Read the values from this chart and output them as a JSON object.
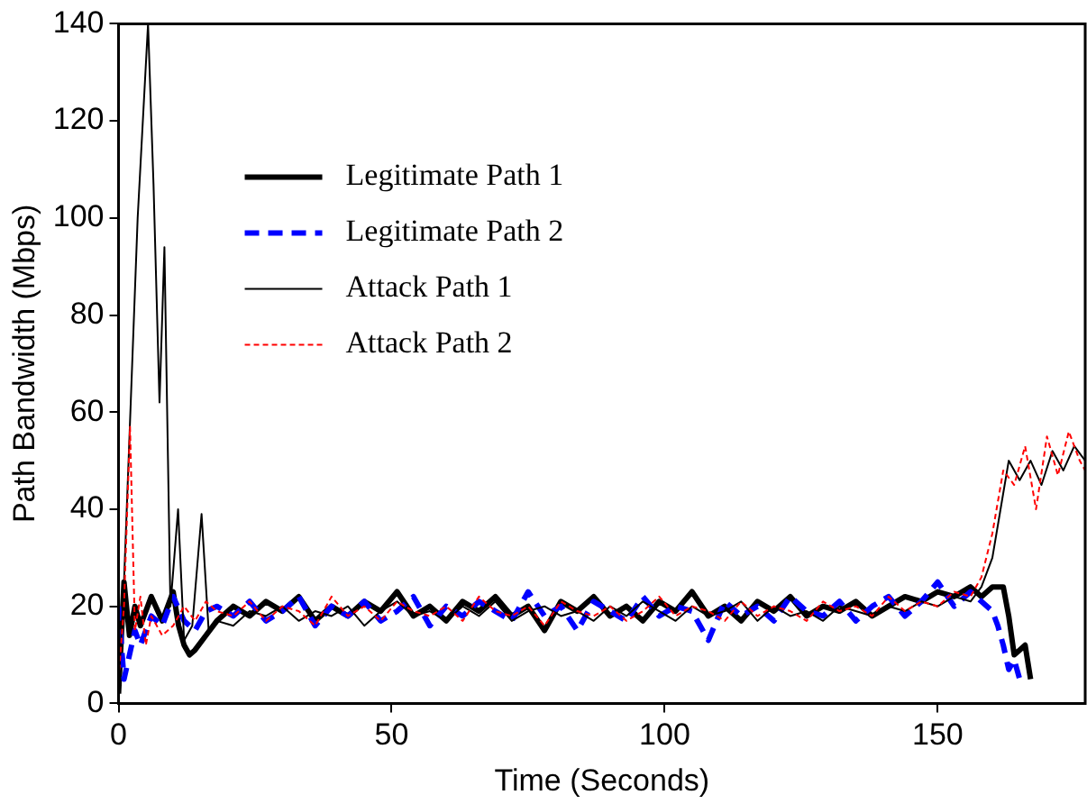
{
  "chart_data": {
    "type": "line",
    "xlabel": "Time (Seconds)",
    "ylabel": "Path Bandwidth (Mbps)",
    "xlim": [
      0,
      177
    ],
    "xticks": [
      0,
      50,
      100,
      150
    ],
    "ylim": [
      0,
      140
    ],
    "yticks": [
      0,
      20,
      40,
      60,
      80,
      100,
      120,
      140
    ],
    "grid": false,
    "legend": "top left",
    "marker": "none",
    "series": [
      {
        "name": "Legitimate Path 1",
        "color": "#000000",
        "line_style": "solid",
        "x": [
          0,
          1,
          2,
          3,
          4,
          6,
          8,
          10,
          11,
          12,
          13,
          14,
          16,
          18,
          21,
          24,
          27,
          30,
          33,
          36,
          39,
          42,
          45,
          48,
          51,
          54,
          57,
          60,
          63,
          66,
          69,
          72,
          75,
          78,
          81,
          84,
          87,
          90,
          93,
          96,
          99,
          102,
          105,
          108,
          111,
          114,
          117,
          120,
          123,
          126,
          129,
          132,
          135,
          138,
          141,
          144,
          147,
          150,
          153,
          156,
          158,
          160,
          162,
          163,
          164,
          165,
          166,
          167
        ],
        "values": [
          2,
          25,
          14,
          20,
          16,
          22,
          17,
          23,
          16,
          12,
          10,
          11,
          14,
          17,
          20,
          18,
          21,
          19,
          22,
          17,
          20,
          18,
          21,
          19,
          23,
          18,
          20,
          17,
          21,
          19,
          22,
          18,
          20,
          15,
          21,
          19,
          22,
          18,
          20,
          17,
          21,
          19,
          23,
          18,
          20,
          17,
          21,
          19,
          22,
          18,
          20,
          19,
          21,
          18,
          20,
          22,
          21,
          23,
          22,
          24,
          22,
          24,
          24,
          18,
          10,
          11,
          12,
          5
        ]
      },
      {
        "name": "Legitimate Path 2",
        "color": "#0000ff",
        "line_style": "dashed",
        "x": [
          0,
          1,
          2,
          3,
          4,
          6,
          8,
          10,
          12,
          14,
          16,
          18,
          21,
          24,
          27,
          30,
          33,
          36,
          39,
          42,
          45,
          48,
          51,
          54,
          57,
          60,
          63,
          66,
          69,
          72,
          75,
          78,
          81,
          84,
          87,
          90,
          93,
          96,
          99,
          102,
          105,
          108,
          111,
          114,
          117,
          120,
          123,
          126,
          129,
          132,
          135,
          138,
          141,
          144,
          147,
          150,
          153,
          156,
          158,
          160,
          161,
          162,
          163,
          164,
          165
        ],
        "values": [
          20,
          5,
          10,
          15,
          12,
          18,
          16,
          22,
          17,
          15,
          19,
          20,
          18,
          21,
          17,
          19,
          22,
          16,
          20,
          18,
          21,
          17,
          19,
          22,
          16,
          20,
          18,
          21,
          19,
          17,
          23,
          18,
          20,
          15,
          21,
          19,
          17,
          22,
          18,
          20,
          19,
          13,
          21,
          18,
          20,
          17,
          22,
          19,
          18,
          21,
          17,
          20,
          22,
          18,
          21,
          25,
          20,
          23,
          21,
          19,
          16,
          12,
          7,
          9,
          5
        ]
      },
      {
        "name": "Attack Path 1",
        "color": "#000000",
        "line_style": "solid",
        "x": [
          0,
          1,
          2,
          3.5,
          5.4,
          6.4,
          7.5,
          8.4,
          9.5,
          10.9,
          12,
          13.5,
          15.2,
          16.5,
          18,
          21,
          24,
          27,
          30,
          33,
          36,
          39,
          42,
          45,
          48,
          51,
          54,
          57,
          60,
          63,
          66,
          69,
          72,
          75,
          78,
          81,
          84,
          87,
          90,
          93,
          96,
          99,
          102,
          105,
          108,
          111,
          114,
          117,
          120,
          123,
          126,
          129,
          132,
          135,
          138,
          141,
          144,
          147,
          150,
          153,
          156,
          158,
          160,
          161.5,
          163,
          165,
          167,
          169,
          171,
          173,
          175,
          177
        ],
        "values": [
          3,
          25,
          55,
          100,
          140,
          107,
          62,
          94,
          20,
          40,
          13,
          16,
          39,
          15,
          17,
          16,
          19,
          18,
          20,
          17,
          19,
          18,
          20,
          16,
          19,
          21,
          18,
          19,
          17,
          20,
          18,
          21,
          17,
          19,
          20,
          18,
          19,
          17,
          20,
          18,
          21,
          19,
          17,
          20,
          18,
          19,
          21,
          17,
          20,
          18,
          19,
          17,
          20,
          19,
          18,
          20,
          19,
          21,
          20,
          22,
          21,
          24,
          30,
          40,
          50,
          46,
          50,
          45,
          52,
          48,
          53,
          50
        ]
      },
      {
        "name": "Attack Path 2",
        "color": "#ff0000",
        "line_style": "dotted",
        "x": [
          0,
          1,
          2.1,
          3,
          4,
          5,
          6,
          8,
          10,
          12,
          14,
          16,
          18,
          21,
          24,
          27,
          30,
          33,
          36,
          39,
          42,
          45,
          48,
          51,
          54,
          57,
          60,
          63,
          66,
          69,
          72,
          75,
          78,
          81,
          84,
          87,
          90,
          93,
          96,
          99,
          102,
          105,
          108,
          111,
          114,
          117,
          120,
          123,
          126,
          129,
          132,
          135,
          138,
          141,
          144,
          147,
          150,
          153,
          156,
          158,
          160,
          162,
          164,
          166,
          168,
          170,
          172,
          174,
          176,
          177
        ],
        "values": [
          5,
          20,
          57,
          15,
          22,
          12,
          18,
          14,
          16,
          20,
          17,
          21,
          19,
          18,
          21,
          17,
          20,
          19,
          16,
          22,
          18,
          20,
          17,
          21,
          19,
          18,
          20,
          17,
          22,
          19,
          18,
          20,
          16,
          21,
          19,
          18,
          20,
          17,
          19,
          22,
          18,
          20,
          19,
          17,
          21,
          18,
          20,
          19,
          17,
          21,
          19,
          20,
          18,
          22,
          19,
          21,
          20,
          23,
          22,
          26,
          35,
          48,
          45,
          53,
          40,
          55,
          47,
          56,
          50,
          48
        ]
      }
    ]
  }
}
